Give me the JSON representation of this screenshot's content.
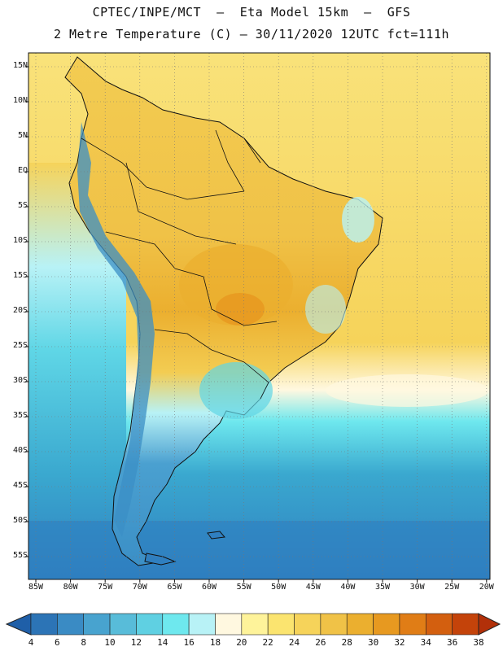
{
  "header": {
    "line1": "CPTEC/INPE/MCT  –  Eta Model 15km  –  GFS",
    "line2": "2 Metre Temperature (C) – 30/11/2020 12UTC fct=111h"
  },
  "map": {
    "lat_labels": [
      "15N",
      "10N",
      "5N",
      "EQ",
      "5S",
      "10S",
      "15S",
      "20S",
      "25S",
      "30S",
      "35S",
      "40S",
      "45S",
      "50S",
      "55S"
    ],
    "lon_labels": [
      "85W",
      "80W",
      "75W",
      "70W",
      "65W",
      "60W",
      "55W",
      "50W",
      "45W",
      "40W",
      "35W",
      "30W",
      "25W",
      "20W"
    ],
    "grid": "dotted",
    "land_icon": "south-america-continent",
    "colors": {
      "ocean_tropical": "#f9e27a",
      "ocean_warm": "#f6d35a",
      "ocean_cool": "#5fd6e6",
      "ocean_cold": "#3aa8cf",
      "ocean_south": "#2f7fc0",
      "land_hot": "#eab43a",
      "land_warm": "#f3cc52",
      "andes_cold": "#3b8fc6",
      "patagonia": "#4aa0d0"
    }
  },
  "legend": {
    "labels": [
      "4",
      "6",
      "8",
      "10",
      "12",
      "14",
      "16",
      "18",
      "20",
      "22",
      "24",
      "26",
      "28",
      "30",
      "32",
      "34",
      "36",
      "38"
    ],
    "colors": [
      "#1f5fa8",
      "#2c74b6",
      "#3a8bc4",
      "#48a3cf",
      "#58bcd9",
      "#5fd0e2",
      "#6ee8ee",
      "#b8f2f6",
      "#fff8e0",
      "#fef39a",
      "#fbe46f",
      "#f6d35a",
      "#f0c247",
      "#ebaf2f",
      "#e79920",
      "#e07d16",
      "#d35f0f",
      "#c4430a",
      "#b23009"
    ]
  }
}
